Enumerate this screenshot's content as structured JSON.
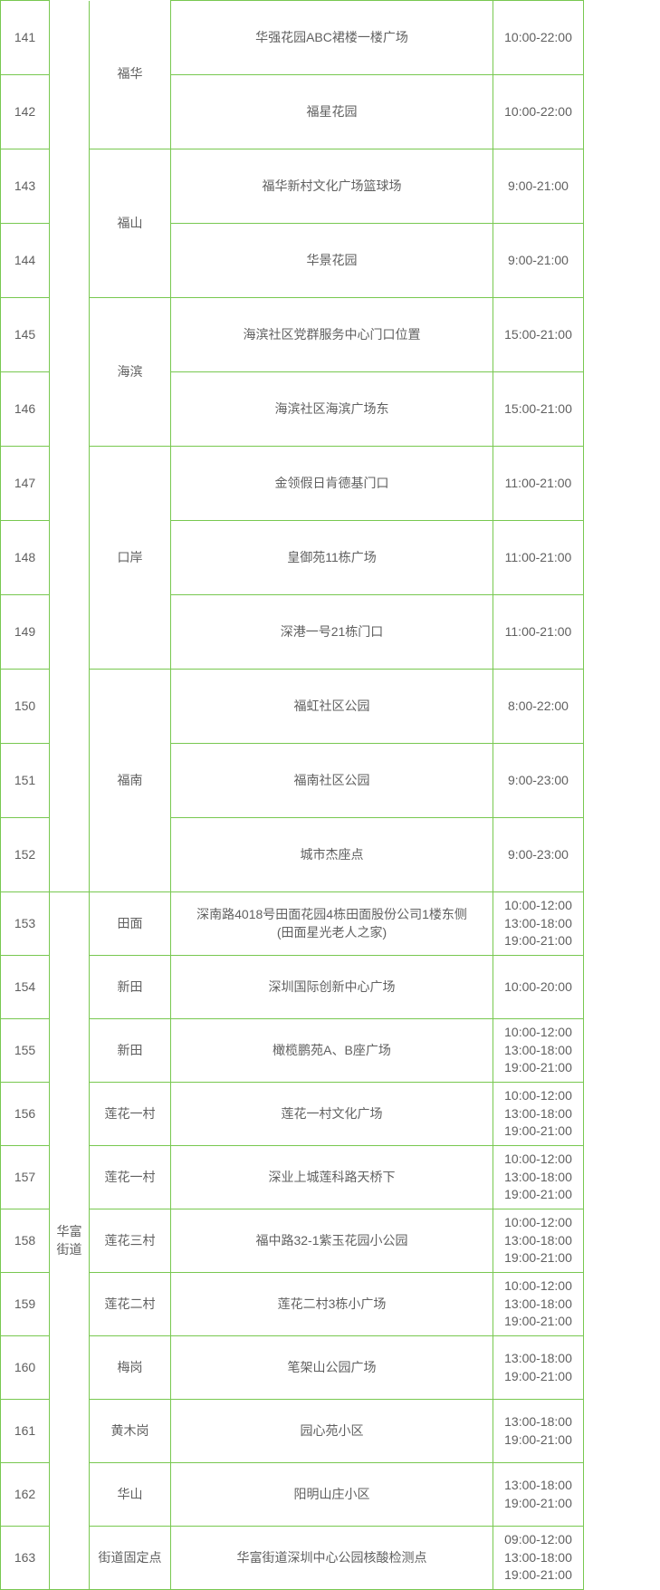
{
  "border_color": "#78c850",
  "text_color": "#606060",
  "rows": [
    {
      "num": "141",
      "district": "",
      "community": "福华",
      "location": "华强花园ABC裙楼一楼广场",
      "time": "10:00-22:00"
    },
    {
      "num": "142",
      "district": "",
      "community": "",
      "location": "福星花园",
      "time": "10:00-22:00"
    },
    {
      "num": "143",
      "district": "",
      "community": "福山",
      "location": "福华新村文化广场篮球场",
      "time": "9:00-21:00"
    },
    {
      "num": "144",
      "district": "",
      "community": "",
      "location": "华景花园",
      "time": "9:00-21:00"
    },
    {
      "num": "145",
      "district": "",
      "community": "海滨",
      "location": "海滨社区党群服务中心门口位置",
      "time": "15:00-21:00"
    },
    {
      "num": "146",
      "district": "",
      "community": "",
      "location": "海滨社区海滨广场东",
      "time": "15:00-21:00"
    },
    {
      "num": "147",
      "district": "",
      "community": "口岸",
      "location": "金领假日肯德基门口",
      "time": "11:00-21:00"
    },
    {
      "num": "148",
      "district": "",
      "community": "",
      "location": "皇御苑11栋广场",
      "time": "11:00-21:00"
    },
    {
      "num": "149",
      "district": "",
      "community": "",
      "location": "深港一号21栋门口",
      "time": "11:00-21:00"
    },
    {
      "num": "150",
      "district": "",
      "community": "福南",
      "location": "福虹社区公园",
      "time": "8:00-22:00"
    },
    {
      "num": "151",
      "district": "",
      "community": "",
      "location": "福南社区公园",
      "time": "9:00-23:00"
    },
    {
      "num": "152",
      "district": "",
      "community": "",
      "location": "城市杰座点",
      "time": "9:00-23:00"
    },
    {
      "num": "153",
      "district": "华富\n街道",
      "community": "田面",
      "location": "深南路4018号田面花园4栋田面股份公司1楼东侧\n(田面星光老人之家)",
      "time": "10:00-12:00\n13:00-18:00\n19:00-21:00"
    },
    {
      "num": "154",
      "district": "",
      "community": "新田",
      "location": "深圳国际创新中心广场",
      "time": "10:00-20:00"
    },
    {
      "num": "155",
      "district": "",
      "community": "新田",
      "location": "橄榄鹏苑A、B座广场",
      "time": "10:00-12:00\n13:00-18:00\n19:00-21:00"
    },
    {
      "num": "156",
      "district": "",
      "community": "莲花一村",
      "location": "莲花一村文化广场",
      "time": "10:00-12:00\n13:00-18:00\n19:00-21:00"
    },
    {
      "num": "157",
      "district": "",
      "community": "莲花一村",
      "location": "深业上城莲科路天桥下",
      "time": "10:00-12:00\n13:00-18:00\n19:00-21:00"
    },
    {
      "num": "158",
      "district": "",
      "community": "莲花三村",
      "location": "福中路32-1紫玉花园小公园",
      "time": "10:00-12:00\n13:00-18:00\n19:00-21:00"
    },
    {
      "num": "159",
      "district": "",
      "community": "莲花二村",
      "location": "莲花二村3栋小广场",
      "time": "10:00-12:00\n13:00-18:00\n19:00-21:00"
    },
    {
      "num": "160",
      "district": "",
      "community": "梅岗",
      "location": "笔架山公园广场",
      "time": "13:00-18:00\n19:00-21:00"
    },
    {
      "num": "161",
      "district": "",
      "community": "黄木岗",
      "location": "园心苑小区",
      "time": "13:00-18:00\n19:00-21:00"
    },
    {
      "num": "162",
      "district": "",
      "community": "华山",
      "location": "阳明山庄小区",
      "time": "13:00-18:00\n19:00-21:00"
    },
    {
      "num": "163",
      "district": "",
      "community": "街道固定点",
      "location": "华富街道深圳中心公园核酸检测点",
      "time": "09:00-12:00\n13:00-18:00\n19:00-21:00"
    }
  ]
}
